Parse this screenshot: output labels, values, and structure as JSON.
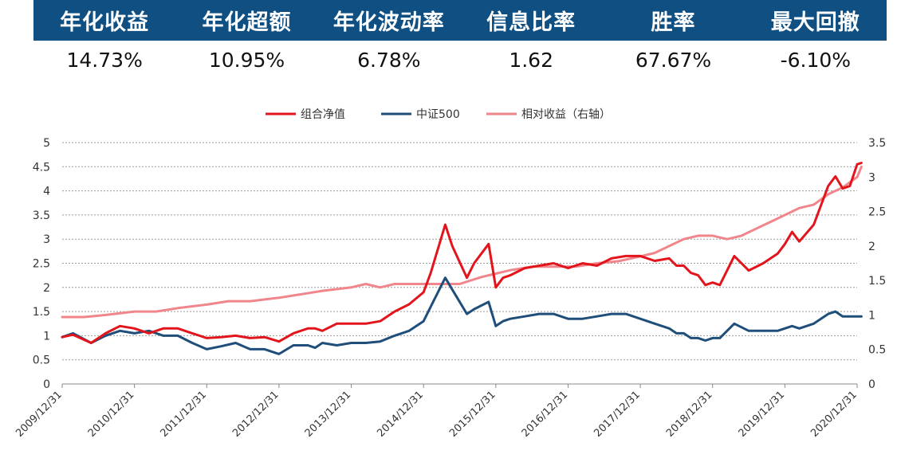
{
  "stats": {
    "headers": [
      "年化收益",
      "年化超额",
      "年化波动率",
      "信息比率",
      "胜率",
      "最大回撤"
    ],
    "values": [
      "14.73%",
      "10.95%",
      "6.78%",
      "1.62",
      "67.67%",
      "-6.10%"
    ]
  },
  "chart_data": {
    "type": "line",
    "legend": {
      "position": "top",
      "items": [
        "组合净值",
        "中证500",
        "相对收益（右轴）"
      ]
    },
    "x_ticks": [
      "2009/12/31",
      "2010/12/31",
      "2011/12/31",
      "2012/12/31",
      "2013/12/31",
      "2014/12/31",
      "2015/12/31",
      "2016/12/31",
      "2017/12/31",
      "2018/12/31",
      "2019/12/31",
      "2020/12/31"
    ],
    "left_axis": {
      "ylim": [
        0,
        5
      ],
      "ticks": [
        "0",
        "0.5",
        "1",
        "1.5",
        "2",
        "2.5",
        "3",
        "3.5",
        "4",
        "4.5",
        "5"
      ]
    },
    "right_axis": {
      "ylim": [
        0,
        3.5
      ],
      "ticks": [
        "0",
        "0.5",
        "1",
        "1.5",
        "2",
        "2.5",
        "3",
        "3.5"
      ]
    },
    "grid": "horizontal",
    "colors": {
      "portfolio": "#e3151c",
      "csi500": "#1f4e7a",
      "relative": "#f0868b"
    },
    "series": [
      {
        "name": "组合净值",
        "axis": "left",
        "points": [
          [
            0,
            0.97
          ],
          [
            0.15,
            1.02
          ],
          [
            0.4,
            0.85
          ],
          [
            0.6,
            1.05
          ],
          [
            0.8,
            1.2
          ],
          [
            1.0,
            1.15
          ],
          [
            1.2,
            1.05
          ],
          [
            1.4,
            1.15
          ],
          [
            1.6,
            1.15
          ],
          [
            1.8,
            1.05
          ],
          [
            2.0,
            0.95
          ],
          [
            2.2,
            0.97
          ],
          [
            2.4,
            1.0
          ],
          [
            2.6,
            0.95
          ],
          [
            2.8,
            0.97
          ],
          [
            3.0,
            0.88
          ],
          [
            3.2,
            1.05
          ],
          [
            3.4,
            1.15
          ],
          [
            3.5,
            1.15
          ],
          [
            3.6,
            1.1
          ],
          [
            3.8,
            1.25
          ],
          [
            4.0,
            1.25
          ],
          [
            4.2,
            1.25
          ],
          [
            4.4,
            1.3
          ],
          [
            4.6,
            1.5
          ],
          [
            4.8,
            1.65
          ],
          [
            5.0,
            1.9
          ],
          [
            5.1,
            2.3
          ],
          [
            5.3,
            3.3
          ],
          [
            5.4,
            2.85
          ],
          [
            5.6,
            2.2
          ],
          [
            5.7,
            2.5
          ],
          [
            5.9,
            2.9
          ],
          [
            6.0,
            2.0
          ],
          [
            6.1,
            2.2
          ],
          [
            6.2,
            2.25
          ],
          [
            6.4,
            2.4
          ],
          [
            6.6,
            2.45
          ],
          [
            6.8,
            2.5
          ],
          [
            7.0,
            2.4
          ],
          [
            7.2,
            2.5
          ],
          [
            7.4,
            2.45
          ],
          [
            7.6,
            2.6
          ],
          [
            7.8,
            2.65
          ],
          [
            8.0,
            2.65
          ],
          [
            8.2,
            2.55
          ],
          [
            8.4,
            2.6
          ],
          [
            8.5,
            2.45
          ],
          [
            8.6,
            2.45
          ],
          [
            8.7,
            2.3
          ],
          [
            8.8,
            2.25
          ],
          [
            8.9,
            2.05
          ],
          [
            9.0,
            2.1
          ],
          [
            9.1,
            2.05
          ],
          [
            9.3,
            2.65
          ],
          [
            9.5,
            2.35
          ],
          [
            9.7,
            2.5
          ],
          [
            9.9,
            2.7
          ],
          [
            10.0,
            2.9
          ],
          [
            10.1,
            3.15
          ],
          [
            10.2,
            2.95
          ],
          [
            10.4,
            3.3
          ],
          [
            10.6,
            4.1
          ],
          [
            10.7,
            4.3
          ],
          [
            10.8,
            4.05
          ],
          [
            10.9,
            4.1
          ],
          [
            11.0,
            4.55
          ],
          [
            11.06,
            4.58
          ]
        ]
      },
      {
        "name": "中证500",
        "axis": "left",
        "points": [
          [
            0,
            0.97
          ],
          [
            0.15,
            1.05
          ],
          [
            0.4,
            0.85
          ],
          [
            0.6,
            1.0
          ],
          [
            0.8,
            1.1
          ],
          [
            1.0,
            1.05
          ],
          [
            1.2,
            1.1
          ],
          [
            1.4,
            1.0
          ],
          [
            1.6,
            1.0
          ],
          [
            1.8,
            0.85
          ],
          [
            2.0,
            0.72
          ],
          [
            2.2,
            0.78
          ],
          [
            2.4,
            0.85
          ],
          [
            2.6,
            0.72
          ],
          [
            2.8,
            0.72
          ],
          [
            3.0,
            0.62
          ],
          [
            3.2,
            0.8
          ],
          [
            3.4,
            0.8
          ],
          [
            3.5,
            0.75
          ],
          [
            3.6,
            0.85
          ],
          [
            3.8,
            0.8
          ],
          [
            4.0,
            0.85
          ],
          [
            4.2,
            0.85
          ],
          [
            4.4,
            0.88
          ],
          [
            4.6,
            1.0
          ],
          [
            4.8,
            1.1
          ],
          [
            5.0,
            1.3
          ],
          [
            5.1,
            1.6
          ],
          [
            5.3,
            2.2
          ],
          [
            5.4,
            1.95
          ],
          [
            5.6,
            1.45
          ],
          [
            5.7,
            1.55
          ],
          [
            5.9,
            1.7
          ],
          [
            6.0,
            1.2
          ],
          [
            6.1,
            1.3
          ],
          [
            6.2,
            1.35
          ],
          [
            6.4,
            1.4
          ],
          [
            6.6,
            1.45
          ],
          [
            6.8,
            1.45
          ],
          [
            7.0,
            1.35
          ],
          [
            7.2,
            1.35
          ],
          [
            7.4,
            1.4
          ],
          [
            7.6,
            1.45
          ],
          [
            7.8,
            1.45
          ],
          [
            8.0,
            1.35
          ],
          [
            8.2,
            1.25
          ],
          [
            8.4,
            1.15
          ],
          [
            8.5,
            1.05
          ],
          [
            8.6,
            1.05
          ],
          [
            8.7,
            0.95
          ],
          [
            8.8,
            0.95
          ],
          [
            8.9,
            0.9
          ],
          [
            9.0,
            0.95
          ],
          [
            9.1,
            0.95
          ],
          [
            9.3,
            1.25
          ],
          [
            9.5,
            1.1
          ],
          [
            9.7,
            1.1
          ],
          [
            9.9,
            1.1
          ],
          [
            10.0,
            1.15
          ],
          [
            10.1,
            1.2
          ],
          [
            10.2,
            1.15
          ],
          [
            10.4,
            1.25
          ],
          [
            10.6,
            1.45
          ],
          [
            10.7,
            1.5
          ],
          [
            10.8,
            1.4
          ],
          [
            10.9,
            1.4
          ],
          [
            11.0,
            1.4
          ],
          [
            11.06,
            1.4
          ]
        ]
      },
      {
        "name": "相对收益（右轴）",
        "axis": "right",
        "points": [
          [
            0,
            0.97
          ],
          [
            0.3,
            0.97
          ],
          [
            0.6,
            1.0
          ],
          [
            1.0,
            1.05
          ],
          [
            1.3,
            1.05
          ],
          [
            1.6,
            1.1
          ],
          [
            2.0,
            1.15
          ],
          [
            2.3,
            1.2
          ],
          [
            2.6,
            1.2
          ],
          [
            3.0,
            1.25
          ],
          [
            3.3,
            1.3
          ],
          [
            3.6,
            1.35
          ],
          [
            4.0,
            1.4
          ],
          [
            4.2,
            1.45
          ],
          [
            4.4,
            1.4
          ],
          [
            4.6,
            1.45
          ],
          [
            4.9,
            1.45
          ],
          [
            5.2,
            1.45
          ],
          [
            5.5,
            1.45
          ],
          [
            5.8,
            1.55
          ],
          [
            6.0,
            1.6
          ],
          [
            6.2,
            1.65
          ],
          [
            6.5,
            1.7
          ],
          [
            6.8,
            1.7
          ],
          [
            7.1,
            1.7
          ],
          [
            7.4,
            1.75
          ],
          [
            7.7,
            1.78
          ],
          [
            8.0,
            1.85
          ],
          [
            8.2,
            1.9
          ],
          [
            8.4,
            2.0
          ],
          [
            8.6,
            2.1
          ],
          [
            8.8,
            2.15
          ],
          [
            9.0,
            2.15
          ],
          [
            9.2,
            2.1
          ],
          [
            9.4,
            2.15
          ],
          [
            9.6,
            2.25
          ],
          [
            9.8,
            2.35
          ],
          [
            10.0,
            2.45
          ],
          [
            10.2,
            2.55
          ],
          [
            10.4,
            2.6
          ],
          [
            10.6,
            2.75
          ],
          [
            10.8,
            2.85
          ],
          [
            11.0,
            3.0
          ],
          [
            11.06,
            3.15
          ]
        ]
      }
    ]
  }
}
